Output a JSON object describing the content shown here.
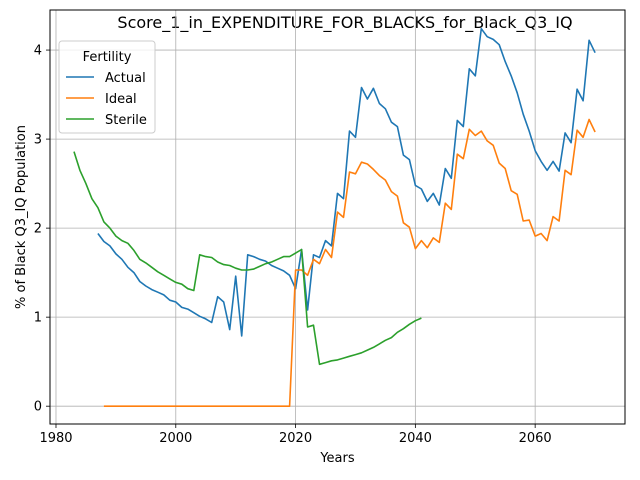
{
  "chart_data": {
    "type": "line",
    "title": "Score_1_in_EXPENDITURE_FOR_BLACKS_for_Black_Q3_IQ",
    "xlabel": "Years",
    "ylabel": "% of Black Q3_IQ Population",
    "xlim": [
      1979,
      2075
    ],
    "ylim": [
      -0.2,
      4.45
    ],
    "xticks": [
      1980,
      2000,
      2020,
      2040,
      2060
    ],
    "yticks": [
      0,
      1,
      2,
      3,
      4
    ],
    "grid": true,
    "legend": {
      "title": "Fertility",
      "placement": "upper-left"
    },
    "series": [
      {
        "name": "Actual",
        "color": "#1f77b4",
        "x": [
          1987,
          1988,
          1989,
          1990,
          1991,
          1992,
          1993,
          1994,
          1995,
          1996,
          1997,
          1998,
          1999,
          2000,
          2001,
          2002,
          2003,
          2004,
          2005,
          2006,
          2007,
          2008,
          2009,
          2010,
          2011,
          2012,
          2013,
          2014,
          2015,
          2016,
          2017,
          2018,
          2019,
          2020,
          2021,
          2022,
          2023,
          2024,
          2025,
          2026,
          2027,
          2028,
          2029,
          2030,
          2031,
          2032,
          2033,
          2034,
          2035,
          2036,
          2037,
          2038,
          2039,
          2040,
          2041,
          2042,
          2043,
          2044,
          2045,
          2046,
          2047,
          2048,
          2049,
          2050,
          2051,
          2052,
          2053,
          2054,
          2055,
          2056,
          2057,
          2058,
          2059,
          2060,
          2061,
          2062,
          2063,
          2064,
          2065,
          2066,
          2067,
          2068,
          2069,
          2070
        ],
        "y": [
          1.94,
          1.85,
          1.8,
          1.71,
          1.65,
          1.56,
          1.5,
          1.4,
          1.35,
          1.31,
          1.28,
          1.25,
          1.19,
          1.17,
          1.11,
          1.09,
          1.05,
          1.01,
          0.98,
          0.94,
          1.23,
          1.17,
          0.86,
          1.46,
          0.79,
          1.7,
          1.68,
          1.65,
          1.63,
          1.58,
          1.55,
          1.52,
          1.47,
          1.32,
          1.76,
          1.08,
          1.7,
          1.67,
          1.86,
          1.8,
          2.39,
          2.33,
          3.09,
          3.02,
          3.58,
          3.45,
          3.57,
          3.4,
          3.34,
          3.19,
          3.14,
          2.82,
          2.77,
          2.48,
          2.44,
          2.3,
          2.39,
          2.26,
          2.67,
          2.56,
          3.21,
          3.14,
          3.79,
          3.71,
          4.24,
          4.15,
          4.12,
          4.06,
          3.87,
          3.71,
          3.52,
          3.28,
          3.09,
          2.87,
          2.75,
          2.65,
          2.75,
          2.64,
          3.07,
          2.96,
          3.56,
          3.43,
          4.11,
          3.97
        ]
      },
      {
        "name": "Ideal",
        "color": "#ff7f0e",
        "x": [
          1988,
          2019,
          2020,
          2021,
          2022,
          2023,
          2024,
          2025,
          2026,
          2027,
          2028,
          2029,
          2030,
          2031,
          2032,
          2033,
          2034,
          2035,
          2036,
          2037,
          2038,
          2039,
          2040,
          2041,
          2042,
          2043,
          2044,
          2045,
          2046,
          2047,
          2048,
          2049,
          2050,
          2051,
          2052,
          2053,
          2054,
          2055,
          2056,
          2057,
          2058,
          2059,
          2060,
          2061,
          2062,
          2063,
          2064,
          2065,
          2066,
          2067,
          2068,
          2069,
          2070
        ],
        "y": [
          0,
          0,
          1.53,
          1.53,
          1.47,
          1.65,
          1.6,
          1.76,
          1.67,
          2.18,
          2.12,
          2.63,
          2.61,
          2.74,
          2.72,
          2.66,
          2.59,
          2.54,
          2.41,
          2.36,
          2.06,
          2.01,
          1.77,
          1.86,
          1.78,
          1.89,
          1.84,
          2.28,
          2.21,
          2.83,
          2.78,
          3.11,
          3.04,
          3.09,
          2.98,
          2.93,
          2.73,
          2.67,
          2.42,
          2.38,
          2.08,
          2.09,
          1.91,
          1.94,
          1.86,
          2.13,
          2.08,
          2.65,
          2.6,
          3.1,
          3.02,
          3.22,
          3.08
        ]
      },
      {
        "name": "Sterile",
        "color": "#2ca02c",
        "x": [
          1983,
          1984,
          1985,
          1986,
          1987,
          1988,
          1989,
          1990,
          1991,
          1992,
          1993,
          1994,
          1995,
          1996,
          1997,
          1998,
          1999,
          2000,
          2001,
          2002,
          2003,
          2004,
          2005,
          2006,
          2007,
          2008,
          2009,
          2010,
          2011,
          2012,
          2013,
          2014,
          2015,
          2016,
          2017,
          2018,
          2019,
          2020,
          2021,
          2022,
          2023,
          2024,
          2025,
          2026,
          2027,
          2028,
          2029,
          2030,
          2031,
          2032,
          2033,
          2034,
          2035,
          2036,
          2037,
          2038,
          2039,
          2040,
          2041
        ],
        "y": [
          2.86,
          2.65,
          2.5,
          2.33,
          2.23,
          2.07,
          2.0,
          1.91,
          1.86,
          1.83,
          1.75,
          1.65,
          1.61,
          1.56,
          1.51,
          1.47,
          1.43,
          1.39,
          1.37,
          1.32,
          1.3,
          1.7,
          1.68,
          1.67,
          1.62,
          1.59,
          1.58,
          1.55,
          1.53,
          1.53,
          1.54,
          1.57,
          1.6,
          1.62,
          1.65,
          1.68,
          1.68,
          1.72,
          1.76,
          0.89,
          0.91,
          0.47,
          0.49,
          0.51,
          0.52,
          0.54,
          0.56,
          0.58,
          0.6,
          0.63,
          0.66,
          0.7,
          0.74,
          0.77,
          0.83,
          0.87,
          0.92,
          0.96,
          0.99
        ]
      }
    ]
  }
}
